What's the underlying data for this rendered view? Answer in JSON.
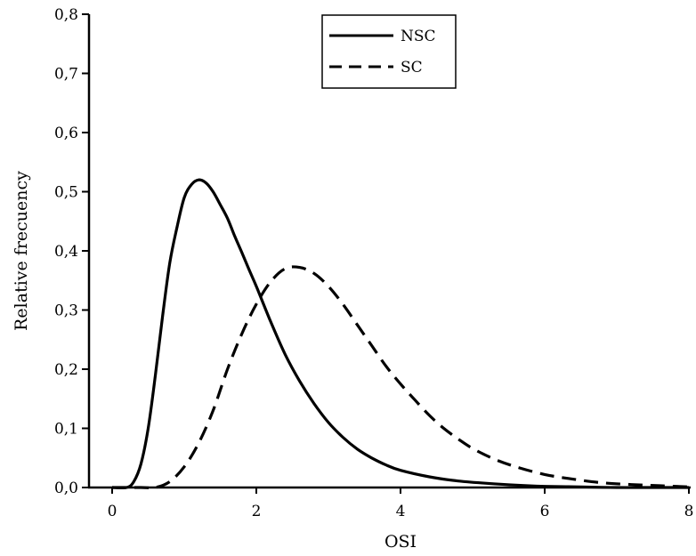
{
  "chart_data": {
    "type": "line",
    "title": "",
    "xlabel": "OSI",
    "ylabel": "Relative frecuency",
    "xlim": [
      0,
      8
    ],
    "ylim": [
      0,
      0.8
    ],
    "grid": false,
    "legend_position": "top-center",
    "x_ticks": [
      0,
      2,
      4,
      6,
      8
    ],
    "x_tick_labels": [
      "0",
      "2",
      "4",
      "6",
      "8"
    ],
    "y_ticks": [
      0,
      0.1,
      0.2,
      0.3,
      0.4,
      0.5,
      0.6,
      0.7,
      0.8
    ],
    "y_tick_labels": [
      "0,0",
      "0,1",
      "0,2",
      "0,3",
      "0,4",
      "0,5",
      "0,6",
      "0,7",
      "0,8"
    ],
    "series": [
      {
        "name": "NSC",
        "line_style": "solid",
        "color": "#000000",
        "x": [
          0.0,
          0.2,
          0.3,
          0.4,
          0.5,
          0.6,
          0.7,
          0.8,
          0.9,
          1.0,
          1.1,
          1.2,
          1.3,
          1.4,
          1.5,
          1.6,
          1.7,
          1.8,
          1.9,
          2.0,
          2.2,
          2.4,
          2.6,
          2.8,
          3.0,
          3.2,
          3.4,
          3.6,
          3.8,
          4.0,
          4.4,
          4.8,
          5.2,
          5.6,
          6.0,
          6.5,
          7.0,
          7.5,
          8.0
        ],
        "y": [
          0.0,
          0.0,
          0.01,
          0.04,
          0.1,
          0.19,
          0.29,
          0.38,
          0.44,
          0.49,
          0.512,
          0.52,
          0.515,
          0.5,
          0.478,
          0.455,
          0.425,
          0.397,
          0.368,
          0.34,
          0.28,
          0.225,
          0.18,
          0.142,
          0.11,
          0.085,
          0.065,
          0.05,
          0.038,
          0.029,
          0.018,
          0.011,
          0.007,
          0.004,
          0.002,
          0.001,
          0.0,
          0.0,
          0.0
        ]
      },
      {
        "name": "SC",
        "line_style": "dashed",
        "color": "#000000",
        "x": [
          0.0,
          0.4,
          0.6,
          0.8,
          1.0,
          1.2,
          1.4,
          1.6,
          1.8,
          2.0,
          2.2,
          2.4,
          2.6,
          2.8,
          3.0,
          3.2,
          3.4,
          3.6,
          3.8,
          4.0,
          4.2,
          4.4,
          4.6,
          4.8,
          5.0,
          5.3,
          5.6,
          6.0,
          6.4,
          6.8,
          7.2,
          7.6,
          8.0
        ],
        "y": [
          0.0,
          0.0,
          0.0,
          0.01,
          0.035,
          0.075,
          0.13,
          0.2,
          0.26,
          0.31,
          0.348,
          0.37,
          0.372,
          0.362,
          0.34,
          0.31,
          0.275,
          0.24,
          0.205,
          0.175,
          0.148,
          0.122,
          0.1,
          0.082,
          0.066,
          0.048,
          0.035,
          0.022,
          0.014,
          0.008,
          0.005,
          0.003,
          0.001
        ]
      }
    ]
  }
}
